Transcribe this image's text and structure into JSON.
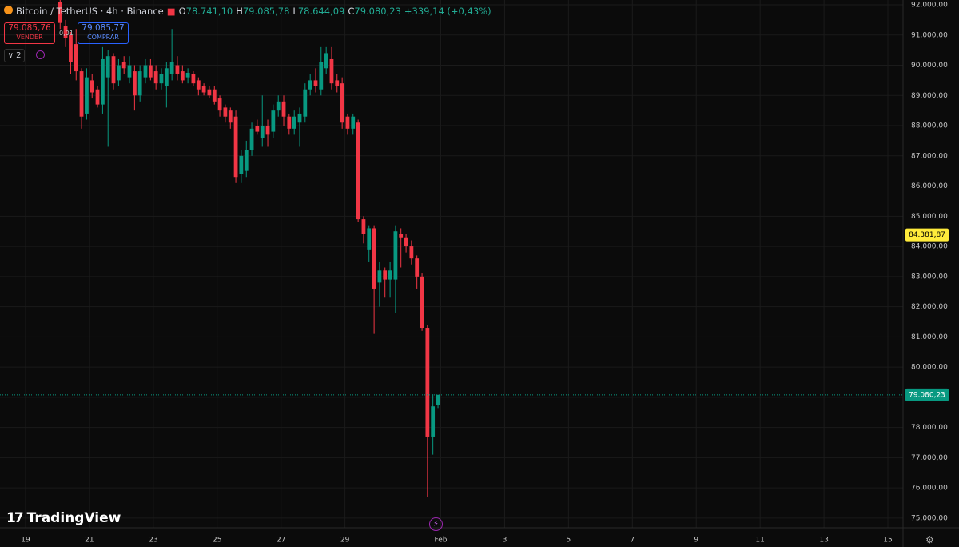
{
  "header": {
    "symbol": "Bitcoin / TetherUS · 4h · Binance",
    "ohlc": [
      {
        "label": "O",
        "value": "78.741,10"
      },
      {
        "label": "H",
        "value": "79.085,78"
      },
      {
        "label": "L",
        "value": "78.644,09"
      },
      {
        "label": "C",
        "value": "79.080,23"
      }
    ],
    "change": "+339,14 (+0,43%)",
    "sell": {
      "price": "79.085,76",
      "label": "VENDER"
    },
    "spread": "0,01",
    "buy": {
      "price": "79.085,77",
      "label": "COMPRAR"
    },
    "indicators": "2",
    "brand": "TradingView"
  },
  "chart_data": {
    "type": "candlestick",
    "up_color": "#089981",
    "down_color": "#f23645",
    "grid": true,
    "x": [
      20,
      20.17,
      20.33,
      20.5,
      20.67,
      20.83,
      21,
      21.17,
      21.33,
      21.5,
      21.67,
      21.83,
      22,
      22.17,
      22.33,
      22.5,
      22.67,
      22.83,
      23,
      23.17,
      23.33,
      23.5,
      23.67,
      23.83,
      24,
      24.17,
      24.33,
      24.5,
      24.67,
      24.83,
      25,
      25.17,
      25.33,
      25.5,
      25.67,
      25.83,
      26,
      26.17,
      26.33,
      26.5,
      26.67,
      26.83,
      27,
      27.17,
      27.33,
      27.5,
      27.67,
      27.83,
      28,
      28.17,
      28.33,
      28.5,
      28.67,
      28.83,
      29,
      29.17,
      29.33,
      29.5,
      29.67,
      29.83,
      30,
      30.17,
      30.33,
      30.5,
      30.67,
      30.83,
      31,
      31.17,
      31.33,
      31.5,
      31.67,
      31.83
    ],
    "open": [
      92100,
      91300,
      91000,
      90700,
      89800,
      88400,
      89500,
      89200,
      88700,
      89600,
      90300,
      89500,
      90100,
      89600,
      89800,
      89000,
      89600,
      90000,
      89800,
      89400,
      89300,
      89700,
      90000,
      89800,
      89600,
      89700,
      89500,
      89300,
      89200,
      89200,
      88900,
      88600,
      88500,
      88300,
      86400,
      86500,
      87200,
      88000,
      87600,
      88000,
      87800,
      88500,
      88800,
      88300,
      87900,
      88100,
      88300,
      89200,
      89500,
      89200,
      89900,
      90200,
      89500,
      89400,
      88300,
      87900,
      88100,
      84900,
      83900,
      84600,
      82800,
      83200,
      82900,
      82900,
      84400,
      84300,
      84000,
      83600,
      83000,
      81300,
      77700,
      78741.1
    ],
    "high": [
      92200,
      91500,
      91100,
      91200,
      89900,
      89900,
      89700,
      89300,
      90600,
      90500,
      90400,
      90200,
      90300,
      90300,
      90000,
      90000,
      90200,
      90200,
      90000,
      89900,
      90100,
      91200,
      90300,
      90000,
      89900,
      89800,
      89600,
      89400,
      89300,
      89300,
      89000,
      88700,
      88600,
      88500,
      87200,
      87500,
      88100,
      88200,
      89000,
      88200,
      88700,
      89000,
      89000,
      88400,
      88500,
      88600,
      89400,
      89700,
      89900,
      90600,
      90600,
      90600,
      89700,
      89600,
      88400,
      88400,
      88200,
      85000,
      84700,
      84700,
      83500,
      83300,
      83500,
      84700,
      84600,
      84400,
      84200,
      83700,
      83100,
      81400,
      79100,
      79085.78
    ],
    "low": [
      91200,
      90600,
      89700,
      89500,
      87900,
      88200,
      88900,
      88600,
      88400,
      87300,
      89200,
      89300,
      89700,
      89400,
      88500,
      88800,
      89400,
      89500,
      89200,
      89200,
      88600,
      89500,
      89500,
      89400,
      89400,
      89300,
      89000,
      89000,
      88900,
      88700,
      88300,
      88100,
      87900,
      86100,
      86100,
      86300,
      87000,
      87700,
      87300,
      87300,
      87600,
      88300,
      88000,
      87700,
      87700,
      87300,
      88100,
      89000,
      89100,
      89000,
      89700,
      89200,
      89100,
      87900,
      87700,
      87700,
      84800,
      84100,
      83500,
      81100,
      82000,
      82300,
      82300,
      81800,
      83300,
      83800,
      83400,
      82600,
      81200,
      75700,
      77100,
      78644.09
    ],
    "close": [
      91400,
      90900,
      90100,
      89800,
      88300,
      89600,
      89100,
      88700,
      90200,
      90300,
      89400,
      90000,
      89900,
      90000,
      89000,
      89800,
      90000,
      89600,
      89400,
      89700,
      89900,
      90100,
      89700,
      89500,
      89750,
      89400,
      89200,
      89100,
      89000,
      88800,
      88500,
      88300,
      88100,
      86300,
      87000,
      87200,
      87900,
      87800,
      88000,
      87700,
      88500,
      88800,
      88300,
      87900,
      88300,
      88400,
      89200,
      89500,
      89300,
      90100,
      90400,
      89400,
      89300,
      88100,
      87900,
      88300,
      84900,
      84400,
      84600,
      82600,
      83200,
      82900,
      83200,
      84500,
      84300,
      84000,
      83600,
      83000,
      81300,
      77700,
      78700,
      79080.23
    ],
    "xlim": [
      18.2,
      46.475
    ],
    "ylim": [
      74680,
      92159
    ],
    "xticks": [
      19,
      21,
      23,
      25,
      27,
      29,
      {
        "value": 32,
        "label": "Feb"
      },
      {
        "value": 34,
        "label": "3"
      },
      {
        "value": 36,
        "label": "5"
      },
      {
        "value": 38,
        "label": "7"
      },
      {
        "value": 40,
        "label": "9"
      },
      {
        "value": 42,
        "label": "11"
      },
      {
        "value": 44,
        "label": "13"
      },
      {
        "value": 46,
        "label": "15"
      }
    ],
    "yticks": [
      {
        "value": 92000,
        "label": "92.000,00"
      },
      {
        "value": 91000,
        "label": "91.000,00"
      },
      {
        "value": 90000,
        "label": "90.000,00"
      },
      {
        "value": 89000,
        "label": "89.000,00"
      },
      {
        "value": 88000,
        "label": "88.000,00"
      },
      {
        "value": 87000,
        "label": "87.000,00"
      },
      {
        "value": 86000,
        "label": "86.000,00"
      },
      {
        "value": 85000,
        "label": "85.000,00"
      },
      {
        "value": 84000,
        "label": "84.000,00"
      },
      {
        "value": 83000,
        "label": "83.000,00"
      },
      {
        "value": 82000,
        "label": "82.000,00"
      },
      {
        "value": 81000,
        "label": "81.000,00"
      },
      {
        "value": 80000,
        "label": "80.000,00"
      },
      {
        "value": 79000,
        "label": "79.000,00"
      },
      {
        "value": 78000,
        "label": "78.000,00"
      },
      {
        "value": 77000,
        "label": "77.000,00"
      },
      {
        "value": 76000,
        "label": "76.000,00"
      },
      {
        "value": 75000,
        "label": "75.000,00"
      }
    ],
    "price_labels": [
      {
        "value": 84381.87,
        "label": "84.381,87",
        "color": "#ffeb3b"
      },
      {
        "value": 79080.23,
        "label": "79.080,23",
        "color": "#089981"
      }
    ]
  }
}
